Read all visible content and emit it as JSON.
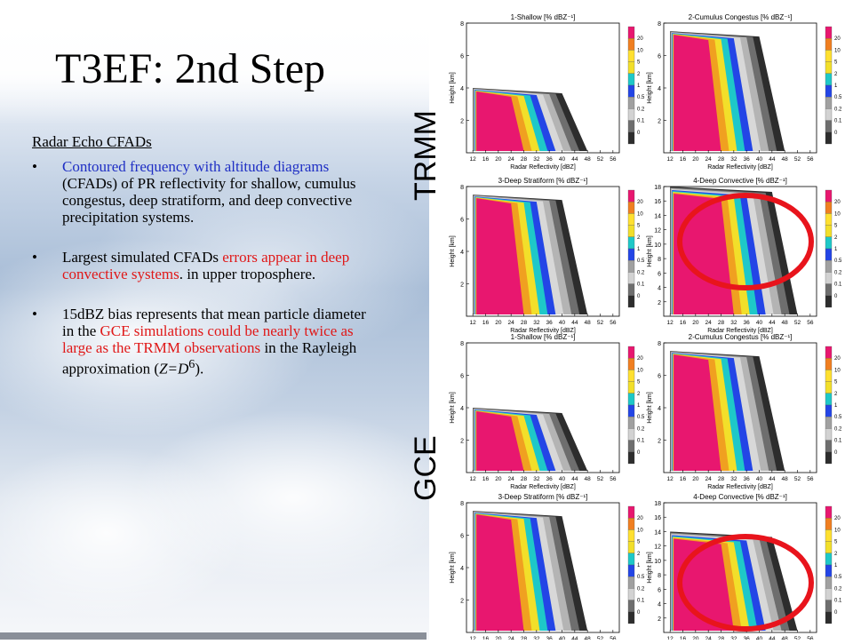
{
  "slide": {
    "title": "T3EF: 2nd Step",
    "subheading": "Radar Echo CFADs",
    "bullet_glyph": "•",
    "bullet1": {
      "a": "Contoured frequency with altitude diagrams",
      "b": " (CFADs) of PR reflectivity for shallow, cumulus congestus, deep stratiform, and deep convective precipitation systems."
    },
    "bullet2": {
      "a": "Largest simulated CFADs ",
      "b": "errors appear in deep convective systems",
      "c": ". in upper troposphere."
    },
    "bullet3": {
      "a": "15dBZ bias represents that mean particle diameter in the ",
      "b": "GCE simulations could be nearly twice as large as the TRMM observations",
      "c": " in the Rayleigh approximation (",
      "z": "Z=D",
      "sup": "6",
      "end": ")."
    }
  },
  "labels": {
    "trmm": "TRMM",
    "gce": "GCE"
  },
  "colors": {
    "highlight_circle": "#e8141c",
    "text_blue": "#1f2fc4",
    "text_red": "#e01818"
  },
  "chart_data": [
    {
      "type": "heatmap",
      "group": "TRMM",
      "panels": [
        {
          "title": "1-Shallow [% dBZ⁻¹]",
          "yticks": [
            "2",
            "4",
            "6",
            "8"
          ],
          "top_km": 4
        },
        {
          "title": "2-Cumulus Congestus [% dBZ⁻¹]",
          "yticks": [
            "2",
            "4",
            "6",
            "8"
          ],
          "top_km": 7.5
        },
        {
          "title": "3-Deep Stratiform [% dBZ⁻¹]",
          "yticks": [
            "2",
            "4",
            "6",
            "8"
          ],
          "top_km": 7.5
        },
        {
          "title": "4-Deep Convective [% dBZ⁻¹]",
          "yticks": [
            "2",
            "4",
            "6",
            "8",
            "10",
            "12",
            "14",
            "16",
            "18"
          ],
          "top_km": 18,
          "highlighted": true
        }
      ],
      "xticks": [
        "12",
        "16",
        "20",
        "24",
        "28",
        "32",
        "36",
        "40",
        "44",
        "48",
        "52",
        "56"
      ],
      "xlabel": "Radar Reflectivity [dBZ]",
      "ylabel": "Height [km]",
      "colorbar": [
        "20",
        "10",
        "5",
        "2",
        "1",
        "0.5",
        "0.2",
        "0.1",
        "0"
      ],
      "colorbar_colors": [
        "#e8176f",
        "#f07f20",
        "#ffe030",
        "#f2df2a",
        "#1ec8c8",
        "#2345e6",
        "#a0a0a0",
        "#d2d2d2",
        "#6e6e6e",
        "#2d2d2d"
      ]
    },
    {
      "type": "heatmap",
      "group": "GCE",
      "panels": [
        {
          "title": "1-Shallow [% dBZ⁻¹]",
          "yticks": [
            "2",
            "4",
            "6",
            "8"
          ],
          "top_km": 4
        },
        {
          "title": "2-Cumulus Congestus [% dBZ⁻¹]",
          "yticks": [
            "2",
            "4",
            "6",
            "8"
          ],
          "top_km": 7.5
        },
        {
          "title": "3-Deep Stratiform [% dBZ⁻¹]",
          "yticks": [
            "2",
            "4",
            "6",
            "8"
          ],
          "top_km": 7.5
        },
        {
          "title": "4-Deep Convective [% dBZ⁻¹]",
          "yticks": [
            "2",
            "4",
            "6",
            "8",
            "10",
            "12",
            "14",
            "16",
            "18"
          ],
          "top_km": 14,
          "highlighted": true
        }
      ],
      "xticks": [
        "12",
        "16",
        "20",
        "24",
        "28",
        "32",
        "36",
        "40",
        "44",
        "48",
        "52",
        "56"
      ],
      "xlabel": "Radar Reflectivity [dBZ]",
      "ylabel": "Height [km]",
      "colorbar": [
        "20",
        "10",
        "5",
        "2",
        "1",
        "0.5",
        "0.2",
        "0.1",
        "0"
      ],
      "colorbar_colors": [
        "#e8176f",
        "#f07f20",
        "#ffe030",
        "#f2df2a",
        "#1ec8c8",
        "#2345e6",
        "#a0a0a0",
        "#d2d2d2",
        "#6e6e6e",
        "#2d2d2d"
      ]
    }
  ]
}
